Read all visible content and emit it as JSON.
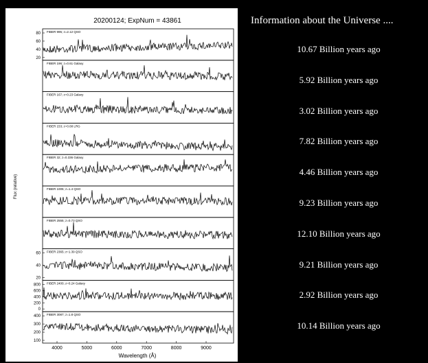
{
  "figure": {
    "title": "20200124; ExpNum = 43861",
    "x_label": "Wavelength (Å)",
    "y_label": "Flux (relative)",
    "x_ticks": [
      "4000",
      "5000",
      "6000",
      "7000",
      "8000",
      "9000"
    ],
    "panels": [
      {
        "label": "FIBER 995; z=2.12 QSO",
        "y_ticks": [
          "80",
          "60",
          "40",
          "20"
        ]
      },
      {
        "label": "FIBER 196; z=0.61 Galaxy",
        "y_ticks": []
      },
      {
        "label": "FIBER 167; z=0.23 Galaxy",
        "y_ticks": []
      },
      {
        "label": "FIBER 153; z=0.68 LRG",
        "y_ticks": []
      },
      {
        "label": "FIBER 32; z=0.336 Galaxy",
        "y_ticks": []
      },
      {
        "label": "FIBER 1005; z=1.4 QSO",
        "y_ticks": []
      },
      {
        "label": "FIBER 2555; z=0.73 QSO",
        "y_ticks": []
      },
      {
        "label": "FIBER 2365; z=1.39 QSO",
        "y_ticks": [
          "60",
          "40",
          "20"
        ]
      },
      {
        "label": "FIBER 2400; z=0.24 Galaxy",
        "y_ticks": [
          "800",
          "600",
          "400",
          "200",
          "0"
        ]
      },
      {
        "label": "FIBER 3087; z=1.8 QSO",
        "y_ticks": [
          "400",
          "300",
          "200",
          "100"
        ]
      }
    ]
  },
  "info": {
    "heading": "Information about the Universe ....",
    "items": [
      "10.67 Billion years ago",
      "5.92 Billion years ago",
      "3.02 Billion years ago",
      "7.82 Billion years ago",
      "4.46 Billion years ago",
      "9.23 Billion years ago",
      "12.10 Billion years ago",
      "9.21 Billion years ago",
      "2.92 Billion years ago",
      "10.14 Billion years ago"
    ]
  }
}
